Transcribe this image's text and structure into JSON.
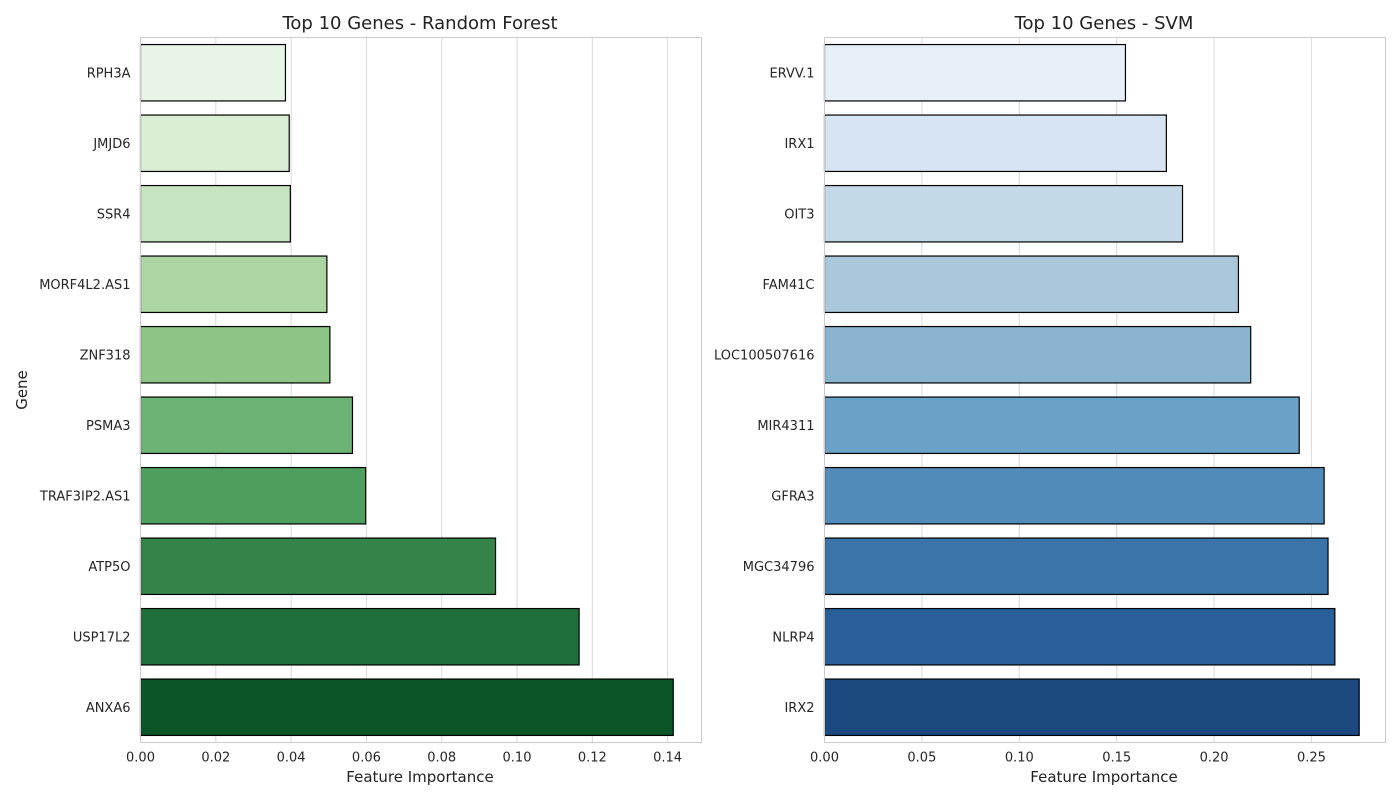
{
  "chart_data": [
    {
      "type": "bar",
      "orientation": "horizontal",
      "title": "Top 10 Genes - Random Forest",
      "xlabel": "Feature Importance",
      "ylabel": "Gene",
      "categories": [
        "RPH3A",
        "JMJD6",
        "SSR4",
        "MORF4L2.AS1",
        "ZNF318",
        "PSMA3",
        "TRAF3IP2.AS1",
        "ATP5O",
        "USP17L2",
        "ANXA6"
      ],
      "values": [
        0.0385,
        0.0395,
        0.0398,
        0.0495,
        0.0503,
        0.0563,
        0.0598,
        0.0943,
        0.1165,
        0.1415
      ],
      "xlim": [
        0,
        0.149
      ],
      "xticks": [
        0.0,
        0.02,
        0.04,
        0.06,
        0.08,
        0.1,
        0.12,
        0.14
      ],
      "xtick_labels": [
        "0.00",
        "0.02",
        "0.04",
        "0.06",
        "0.08",
        "0.10",
        "0.12",
        "0.14"
      ],
      "colors": [
        "#e8f5e6",
        "#d9eed5",
        "#c6e4c0",
        "#abd6a3",
        "#8dc586",
        "#6cb274",
        "#4e9f5e",
        "#348449",
        "#1e6f3a",
        "#0c5529"
      ],
      "grid": "vertical",
      "legend": "none"
    },
    {
      "type": "bar",
      "orientation": "horizontal",
      "title": "Top 10 Genes - SVM",
      "xlabel": "Feature Importance",
      "ylabel": "",
      "categories": [
        "ERVV.1",
        "IRX1",
        "OIT3",
        "FAM41C",
        "LOC100507616",
        "MIR4311",
        "GFRA3",
        "MGC34796",
        "NLRP4",
        "IRX2"
      ],
      "values": [
        0.1545,
        0.1755,
        0.1838,
        0.2125,
        0.2188,
        0.2437,
        0.2565,
        0.2585,
        0.262,
        0.2745
      ],
      "xlim": [
        0,
        0.288
      ],
      "xticks": [
        0.0,
        0.05,
        0.1,
        0.15,
        0.2,
        0.25
      ],
      "xtick_labels": [
        "0.00",
        "0.05",
        "0.10",
        "0.15",
        "0.20",
        "0.25"
      ],
      "colors": [
        "#e7eff8",
        "#d7e4f1",
        "#c4d9e8",
        "#a9c8db",
        "#89b4d0",
        "#6ba1c6",
        "#518bba",
        "#3b74a8",
        "#285f98",
        "#1b4980"
      ],
      "grid": "vertical",
      "legend": "none"
    }
  ]
}
